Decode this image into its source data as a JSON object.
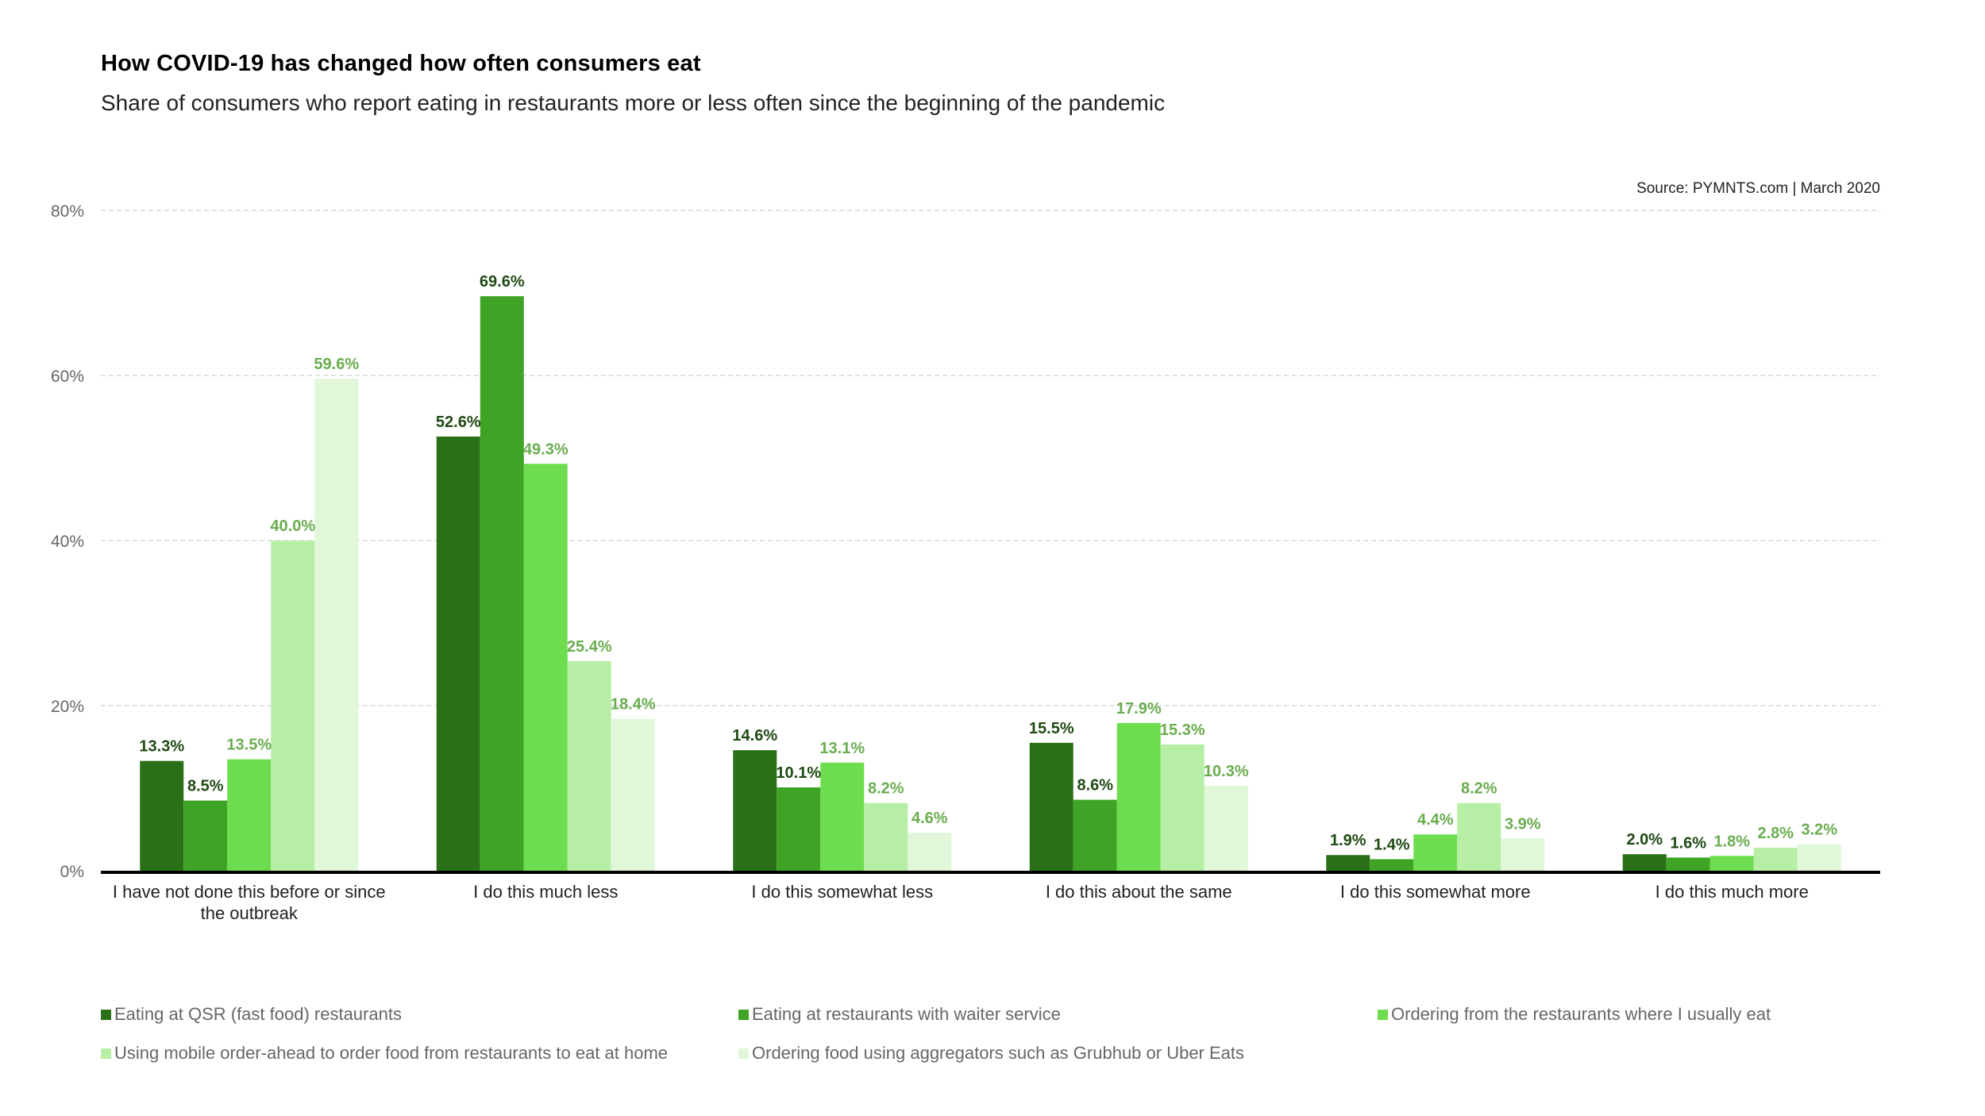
{
  "header": {
    "title": "How COVID-19 has changed how often consumers eat",
    "subtitle": "Share of consumers who report eating in restaurants more or less often since the beginning of the pandemic",
    "source": "Source: PYMNTS.com  |  March 2020"
  },
  "colors": {
    "series": [
      "#2a7018",
      "#3fa325",
      "#6ddd4f",
      "#b6eea6",
      "#e0f7da"
    ],
    "label_dark": "#1f4a14",
    "label_light": "#6aad4f",
    "axis": "#000000",
    "grid": "#d9d9d9",
    "tick_text": "#666666",
    "category_text": "#222222"
  },
  "chart_data": {
    "type": "bar",
    "title": "How COVID-19 has changed how often consumers eat",
    "subtitle": "Share of consumers who report eating in restaurants more or less often since the beginning of the pandemic",
    "xlabel": "",
    "ylabel": "",
    "ylim": [
      0,
      80
    ],
    "yticks": [
      0,
      20,
      40,
      60,
      80
    ],
    "ytick_labels": [
      "0%",
      "20%",
      "40%",
      "60%",
      "80%"
    ],
    "grid": true,
    "legend_position": "bottom",
    "categories": [
      [
        "I have not done this before or since",
        "the outbreak"
      ],
      [
        "I do this much less"
      ],
      [
        "I do this somewhat less"
      ],
      [
        "I do this about the same"
      ],
      [
        "I do this somewhat more"
      ],
      [
        "I do this much more"
      ]
    ],
    "series": [
      {
        "name": "Eating at QSR (fast food) restaurants",
        "values": [
          13.3,
          52.6,
          14.6,
          15.5,
          1.9,
          2.0
        ]
      },
      {
        "name": "Eating at restaurants with waiter service",
        "values": [
          8.5,
          69.6,
          10.1,
          8.6,
          1.4,
          1.6
        ]
      },
      {
        "name": "Ordering from the restaurants where I usually eat",
        "values": [
          13.5,
          49.3,
          13.1,
          17.9,
          4.4,
          1.8
        ]
      },
      {
        "name": "Using mobile order-ahead to order food from restaurants to eat at home",
        "values": [
          40.0,
          25.4,
          8.2,
          15.3,
          8.2,
          2.8
        ]
      },
      {
        "name": "Ordering food using aggregators such as Grubhub or Uber Eats",
        "values": [
          59.6,
          18.4,
          4.6,
          10.3,
          3.9,
          3.2
        ]
      }
    ],
    "data_labels": [
      [
        "13.3%",
        "52.6%",
        "14.6%",
        "15.5%",
        "1.9%",
        "2.0%"
      ],
      [
        "8.5%",
        "69.6%",
        "10.1%",
        "8.6%",
        "1.4%",
        "1.6%"
      ],
      [
        "13.5%",
        "49.3%",
        "13.1%",
        "17.9%",
        "4.4%",
        "1.8%"
      ],
      [
        "40.0%",
        "25.4%",
        "8.2%",
        "15.3%",
        "8.2%",
        "2.8%"
      ],
      [
        "59.6%",
        "18.4%",
        "4.6%",
        "10.3%",
        "3.9%",
        "3.2%"
      ]
    ],
    "source": "Source: PYMNTS.com | March 2020"
  }
}
